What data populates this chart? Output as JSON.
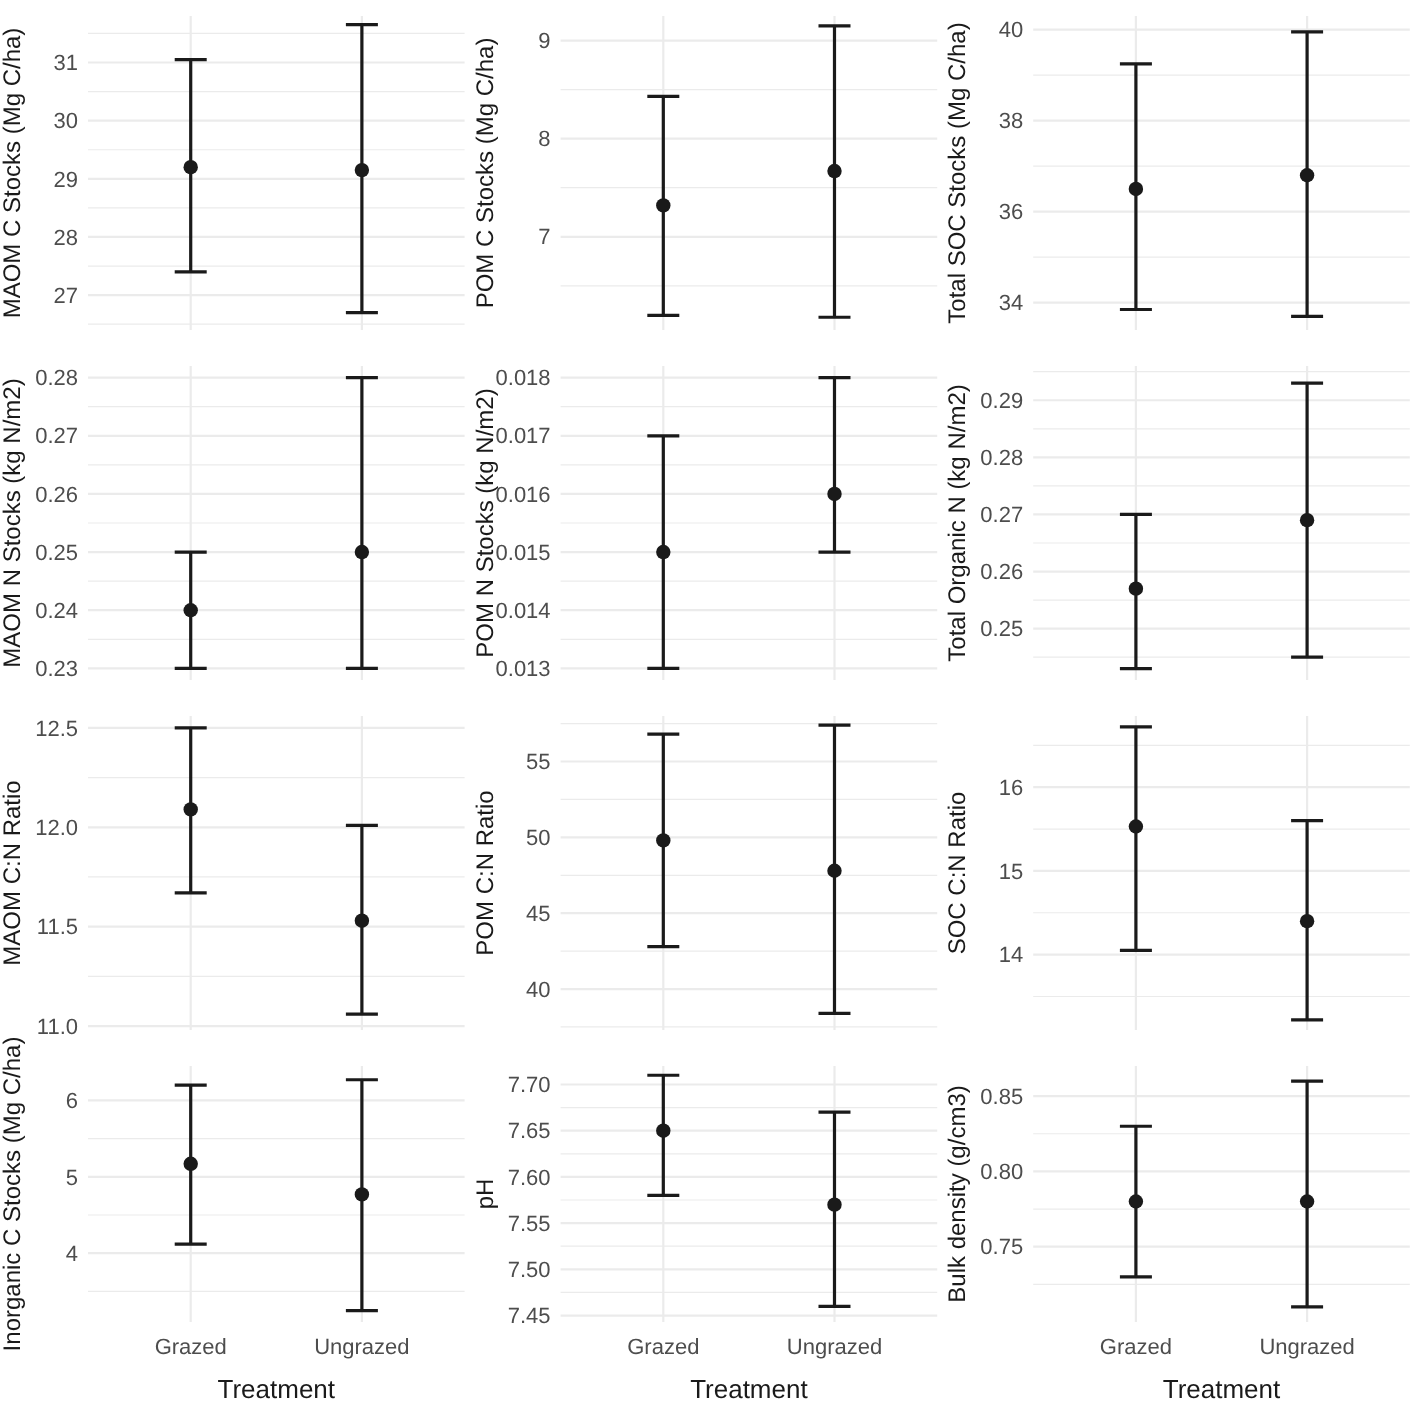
{
  "chart_data": [
    {
      "type": "scatter",
      "ylabel": "MAOM C Stocks (Mg C/ha)",
      "categories": [
        null,
        null
      ],
      "values": [
        29.2,
        29.15
      ],
      "errors": [
        [
          27.4,
          31.05
        ],
        [
          26.7,
          31.65
        ]
      ],
      "color": "#1a1a1a",
      "marker": "circle",
      "ylim": [
        26.4,
        31.8
      ],
      "yticks": [
        {
          "value": 26.5,
          "label": null
        },
        27,
        {
          "value": 27.5,
          "label": null
        },
        28,
        {
          "value": 28.5,
          "label": null
        },
        29,
        {
          "value": 29.5,
          "label": null
        },
        30,
        {
          "value": 30.5,
          "label": null
        },
        31,
        {
          "value": 31.5,
          "label": null
        }
      ],
      "grid": true,
      "tick_labels": "y"
    },
    {
      "type": "scatter",
      "ylabel": "POM C Stocks (Mg C/ha)",
      "categories": [
        null,
        null
      ],
      "values": [
        7.32,
        7.67
      ],
      "errors": [
        [
          6.2,
          8.43
        ],
        [
          6.18,
          9.15
        ]
      ],
      "color": "#1a1a1a",
      "marker": "circle",
      "ylim": [
        6.05,
        9.25
      ],
      "yticks": [
        {
          "value": 6.5,
          "label": null
        },
        7,
        {
          "value": 7.5,
          "label": null
        },
        8,
        {
          "value": 8.5,
          "label": null
        },
        9
      ],
      "grid": true,
      "tick_labels": "y"
    },
    {
      "type": "scatter",
      "ylabel": "Total SOC Stocks (Mg C/ha)",
      "categories": [
        null,
        null
      ],
      "values": [
        36.5,
        36.8
      ],
      "errors": [
        [
          33.85,
          39.25
        ],
        [
          33.7,
          39.95
        ]
      ],
      "color": "#1a1a1a",
      "marker": "circle",
      "ylim": [
        33.4,
        40.3
      ],
      "yticks": [
        34,
        {
          "value": 35,
          "label": null
        },
        36,
        {
          "value": 37,
          "label": null
        },
        38,
        {
          "value": 39,
          "label": null
        },
        40
      ],
      "grid": true,
      "tick_labels": "y"
    },
    {
      "type": "scatter",
      "ylabel": "MAOM N Stocks (kg N/m2)",
      "categories": [
        null,
        null
      ],
      "values": [
        0.24,
        0.25
      ],
      "errors": [
        [
          0.23,
          0.25
        ],
        [
          0.23,
          0.28
        ]
      ],
      "color": "#1a1a1a",
      "marker": "circle",
      "ylim": [
        0.228,
        0.282
      ],
      "yticks": [
        0.23,
        {
          "value": 0.235,
          "label": null
        },
        0.24,
        {
          "value": 0.245,
          "label": null
        },
        0.25,
        {
          "value": 0.255,
          "label": null
        },
        0.26,
        {
          "value": 0.265,
          "label": null
        },
        0.27,
        {
          "value": 0.275,
          "label": null
        },
        0.28
      ],
      "grid": true,
      "tick_labels": "y"
    },
    {
      "type": "scatter",
      "ylabel": "POM N Stocks (kg N/m2)",
      "categories": [
        null,
        null
      ],
      "values": [
        0.015,
        0.016
      ],
      "errors": [
        [
          0.013,
          0.017
        ],
        [
          0.015,
          0.018
        ]
      ],
      "color": "#1a1a1a",
      "marker": "circle",
      "ylim": [
        0.0128,
        0.0182
      ],
      "yticks": [
        0.013,
        {
          "value": 0.0135,
          "label": null
        },
        0.014,
        {
          "value": 0.0145,
          "label": null
        },
        0.015,
        {
          "value": 0.0155,
          "label": null
        },
        0.016,
        {
          "value": 0.0165,
          "label": null
        },
        0.017,
        {
          "value": 0.0175,
          "label": null
        },
        0.018
      ],
      "grid": true,
      "tick_labels": "y"
    },
    {
      "type": "scatter",
      "ylabel": "Total Organic N (kg N/m2)",
      "categories": [
        null,
        null
      ],
      "values": [
        0.257,
        0.269
      ],
      "errors": [
        [
          0.243,
          0.27
        ],
        [
          0.245,
          0.293
        ]
      ],
      "color": "#1a1a1a",
      "marker": "circle",
      "ylim": [
        0.241,
        0.296
      ],
      "yticks": [
        {
          "value": 0.245,
          "label": null
        },
        0.25,
        {
          "value": 0.255,
          "label": null
        },
        0.26,
        {
          "value": 0.265,
          "label": null
        },
        0.27,
        {
          "value": 0.275,
          "label": null
        },
        0.28,
        {
          "value": 0.285,
          "label": null
        },
        0.29,
        {
          "value": 0.295,
          "label": null
        }
      ],
      "grid": true,
      "tick_labels": "y"
    },
    {
      "type": "scatter",
      "ylabel": "MAOM C:N Ratio",
      "categories": [
        null,
        null
      ],
      "values": [
        12.09,
        11.53
      ],
      "errors": [
        [
          11.67,
          12.5
        ],
        [
          11.06,
          12.01
        ]
      ],
      "color": "#1a1a1a",
      "marker": "circle",
      "ylim": [
        10.98,
        12.56
      ],
      "yticks": [
        {
          "value": 11,
          "label": "11.0"
        },
        {
          "value": 11.25,
          "label": null
        },
        11.5,
        {
          "value": 11.75,
          "label": null
        },
        {
          "value": 12,
          "label": "12.0"
        },
        {
          "value": 12.25,
          "label": null
        },
        12.5
      ],
      "grid": true,
      "tick_labels": "y"
    },
    {
      "type": "scatter",
      "ylabel": "POM C:N Ratio",
      "categories": [
        null,
        null
      ],
      "values": [
        49.8,
        47.8
      ],
      "errors": [
        [
          42.8,
          56.8
        ],
        [
          38.4,
          57.4
        ]
      ],
      "color": "#1a1a1a",
      "marker": "circle",
      "ylim": [
        37.3,
        58
      ],
      "yticks": [
        {
          "value": 37.5,
          "label": null
        },
        40,
        {
          "value": 42.5,
          "label": null
        },
        45,
        {
          "value": 47.5,
          "label": null
        },
        50,
        {
          "value": 52.5,
          "label": null
        },
        55,
        {
          "value": 57.5,
          "label": null
        }
      ],
      "grid": true,
      "tick_labels": "y"
    },
    {
      "type": "scatter",
      "ylabel": "SOC C:N Ratio",
      "categories": [
        null,
        null
      ],
      "values": [
        15.53,
        14.4
      ],
      "errors": [
        [
          14.05,
          16.72
        ],
        [
          13.22,
          15.6
        ]
      ],
      "color": "#1a1a1a",
      "marker": "circle",
      "ylim": [
        13.1,
        16.85
      ],
      "yticks": [
        {
          "value": 13.5,
          "label": null
        },
        14,
        {
          "value": 14.5,
          "label": null
        },
        15,
        {
          "value": 15.5,
          "label": null
        },
        16,
        {
          "value": 16.5,
          "label": null
        }
      ],
      "grid": true,
      "tick_labels": "y"
    },
    {
      "type": "scatter",
      "ylabel": "Inorganic C Stocks (Mg C/ha)",
      "xlabel": "Treatment",
      "categories": [
        "Grazed",
        "Ungrazed"
      ],
      "values": [
        5.17,
        4.77
      ],
      "errors": [
        [
          4.12,
          6.2
        ],
        [
          3.25,
          6.27
        ]
      ],
      "color": "#1a1a1a",
      "marker": "circle",
      "ylim": [
        3.1,
        6.45
      ],
      "yticks": [
        {
          "value": 3.5,
          "label": null
        },
        4,
        {
          "value": 4.5,
          "label": null
        },
        5,
        {
          "value": 5.5,
          "label": null
        },
        6
      ],
      "grid": true
    },
    {
      "type": "scatter",
      "ylabel": "pH",
      "xlabel": "Treatment",
      "categories": [
        "Grazed",
        "Ungrazed"
      ],
      "values": [
        7.65,
        7.57
      ],
      "errors": [
        [
          7.58,
          7.71
        ],
        [
          7.46,
          7.67
        ]
      ],
      "color": "#1a1a1a",
      "marker": "circle",
      "ylim": [
        7.443,
        7.72
      ],
      "yticks": [
        {
          "value": 7.45,
          "label": "7.45"
        },
        {
          "value": 7.475,
          "label": null
        },
        {
          "value": 7.5,
          "label": "7.50"
        },
        {
          "value": 7.525,
          "label": null
        },
        {
          "value": 7.55,
          "label": "7.55"
        },
        {
          "value": 7.575,
          "label": null
        },
        {
          "value": 7.6,
          "label": "7.60"
        },
        {
          "value": 7.625,
          "label": null
        },
        {
          "value": 7.65,
          "label": "7.65"
        },
        {
          "value": 7.675,
          "label": null
        },
        {
          "value": 7.7,
          "label": "7.70"
        }
      ],
      "grid": true
    },
    {
      "type": "scatter",
      "ylabel": "Bulk density (g/cm3)",
      "xlabel": "Treatment",
      "categories": [
        "Grazed",
        "Ungrazed"
      ],
      "values": [
        0.78,
        0.78
      ],
      "errors": [
        [
          0.73,
          0.83
        ],
        [
          0.71,
          0.86
        ]
      ],
      "color": "#1a1a1a",
      "marker": "circle",
      "ylim": [
        0.7,
        0.87
      ],
      "yticks": [
        {
          "value": 0.725,
          "label": null
        },
        0.75,
        {
          "value": 0.775,
          "label": null
        },
        {
          "value": 0.8,
          "label": "0.80"
        },
        {
          "value": 0.825,
          "label": null
        },
        0.85
      ],
      "grid": true
    }
  ]
}
